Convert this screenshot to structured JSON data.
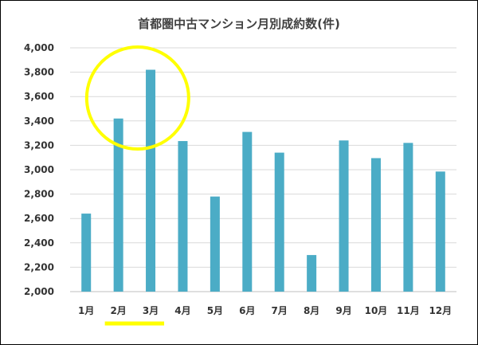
{
  "chart_data": {
    "type": "bar",
    "title": "首都圏中古マンション月別成約数(件)",
    "categories": [
      "1月",
      "2月",
      "3月",
      "4月",
      "5月",
      "6月",
      "7月",
      "8月",
      "9月",
      "10月",
      "11月",
      "12月"
    ],
    "values": [
      2640,
      3420,
      3820,
      3235,
      2780,
      3310,
      3140,
      2300,
      3240,
      3095,
      3220,
      2985
    ],
    "ylim": [
      2000,
      4000
    ],
    "yticks": [
      "2,000",
      "2,200",
      "2,400",
      "2,600",
      "2,800",
      "3,000",
      "3,200",
      "3,400",
      "3,600",
      "3,800",
      "4,000"
    ],
    "ytick_values": [
      2000,
      2200,
      2400,
      2600,
      2800,
      3000,
      3200,
      3400,
      3600,
      3800,
      4000
    ],
    "grid": true,
    "bar_color": "#4bacc6",
    "annotations": {
      "highlight_color": "#ffff00",
      "circled_categories": [
        "2月",
        "3月"
      ],
      "underlined_categories": [
        "2月",
        "3月"
      ]
    }
  }
}
